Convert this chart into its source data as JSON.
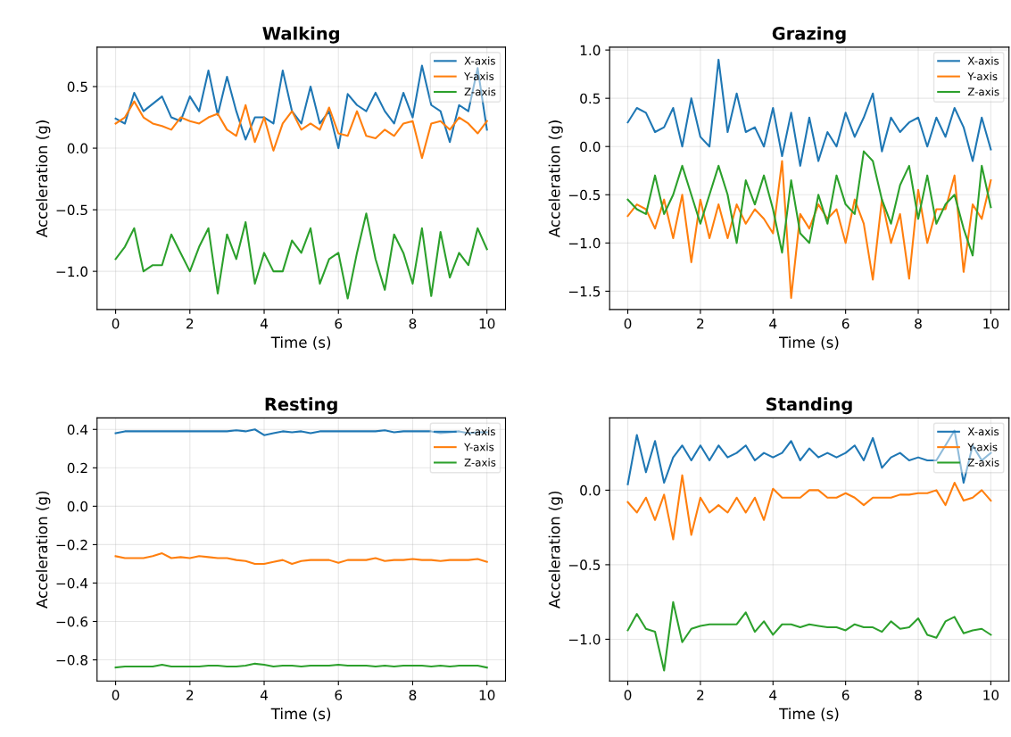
{
  "chart_data": [
    {
      "type": "line",
      "title": "Walking",
      "xlabel": "Time (s)",
      "ylabel": "Acceleration (g)",
      "xlim": [
        -0.5,
        10.5
      ],
      "xticks": [
        0,
        2,
        4,
        6,
        8,
        10
      ],
      "ylim": [
        -1.31,
        0.82
      ],
      "yticks": [
        {
          "value": -1.0,
          "label": "−1.0"
        },
        -0.5,
        {
          "value": 0.0,
          "label": "0.0"
        },
        0.5
      ],
      "grid": true,
      "legend": "top right",
      "x": [
        0,
        0.25,
        0.5,
        0.75,
        1,
        1.25,
        1.5,
        1.75,
        2,
        2.25,
        2.5,
        2.75,
        3,
        3.25,
        3.5,
        3.75,
        4,
        4.25,
        4.5,
        4.75,
        5,
        5.25,
        5.5,
        5.75,
        6,
        6.25,
        6.5,
        6.75,
        7,
        7.25,
        7.5,
        7.75,
        8,
        8.25,
        8.5,
        8.75,
        9,
        9.25,
        9.5,
        9.75,
        10
      ],
      "series": [
        {
          "name": "X-axis",
          "color": "#1f77b4",
          "values": [
            0.24,
            0.2,
            0.45,
            0.3,
            0.36,
            0.42,
            0.25,
            0.22,
            0.42,
            0.3,
            0.63,
            0.27,
            0.58,
            0.3,
            0.07,
            0.25,
            0.25,
            0.2,
            0.63,
            0.3,
            0.2,
            0.5,
            0.2,
            0.3,
            0.0,
            0.44,
            0.35,
            0.3,
            0.45,
            0.3,
            0.2,
            0.45,
            0.25,
            0.67,
            0.35,
            0.3,
            0.05,
            0.35,
            0.3,
            0.65,
            0.15
          ]
        },
        {
          "name": "Y-axis",
          "color": "#ff7f0e",
          "values": [
            0.2,
            0.25,
            0.38,
            0.25,
            0.2,
            0.18,
            0.15,
            0.25,
            0.22,
            0.2,
            0.25,
            0.28,
            0.15,
            0.1,
            0.35,
            0.05,
            0.25,
            -0.02,
            0.2,
            0.3,
            0.15,
            0.2,
            0.15,
            0.33,
            0.12,
            0.1,
            0.3,
            0.1,
            0.08,
            0.15,
            0.1,
            0.2,
            0.22,
            -0.08,
            0.2,
            0.22,
            0.15,
            0.25,
            0.2,
            0.12,
            0.22
          ]
        },
        {
          "name": "Z-axis",
          "color": "#2ca02c",
          "values": [
            -0.9,
            -0.8,
            -0.65,
            -1.0,
            -0.95,
            -0.95,
            -0.7,
            -0.85,
            -1.0,
            -0.8,
            -0.65,
            -1.18,
            -0.7,
            -0.9,
            -0.6,
            -1.1,
            -0.85,
            -1.0,
            -1.0,
            -0.75,
            -0.85,
            -0.65,
            -1.1,
            -0.9,
            -0.85,
            -1.22,
            -0.85,
            -0.53,
            -0.9,
            -1.15,
            -0.7,
            -0.85,
            -1.1,
            -0.65,
            -1.2,
            -0.68,
            -1.05,
            -0.85,
            -0.95,
            -0.65,
            -0.82
          ]
        }
      ]
    },
    {
      "type": "line",
      "title": "Grazing",
      "xlabel": "Time (s)",
      "ylabel": "Acceleration (g)",
      "xlim": [
        -0.5,
        10.5
      ],
      "xticks": [
        0,
        2,
        4,
        6,
        8,
        10
      ],
      "ylim": [
        -1.69,
        1.03
      ],
      "yticks": [
        -1.5,
        {
          "value": -1.0,
          "label": "−1.0"
        },
        -0.5,
        {
          "value": 0.0,
          "label": "0.0"
        },
        0.5,
        {
          "value": 1.0,
          "label": "1.0"
        }
      ],
      "grid": true,
      "legend": "top right",
      "x": [
        0,
        0.25,
        0.5,
        0.75,
        1,
        1.25,
        1.5,
        1.75,
        2,
        2.25,
        2.5,
        2.75,
        3,
        3.25,
        3.5,
        3.75,
        4,
        4.25,
        4.5,
        4.75,
        5,
        5.25,
        5.5,
        5.75,
        6,
        6.25,
        6.5,
        6.75,
        7,
        7.25,
        7.5,
        7.75,
        8,
        8.25,
        8.5,
        8.75,
        9,
        9.25,
        9.5,
        9.75,
        10
      ],
      "series": [
        {
          "name": "X-axis",
          "color": "#1f77b4",
          "values": [
            0.25,
            0.4,
            0.35,
            0.15,
            0.2,
            0.4,
            0.0,
            0.5,
            0.1,
            0.0,
            0.9,
            0.15,
            0.55,
            0.15,
            0.2,
            0.0,
            0.4,
            -0.1,
            0.35,
            -0.2,
            0.3,
            -0.15,
            0.15,
            0.0,
            0.35,
            0.1,
            0.3,
            0.55,
            -0.05,
            0.3,
            0.15,
            0.25,
            0.3,
            0.0,
            0.3,
            0.1,
            0.4,
            0.2,
            -0.15,
            0.3,
            -0.03
          ]
        },
        {
          "name": "Y-axis",
          "color": "#ff7f0e",
          "values": [
            -0.72,
            -0.6,
            -0.65,
            -0.85,
            -0.55,
            -0.95,
            -0.5,
            -1.2,
            -0.55,
            -0.95,
            -0.6,
            -0.95,
            -0.6,
            -0.8,
            -0.65,
            -0.75,
            -0.9,
            -0.15,
            -1.57,
            -0.7,
            -0.85,
            -0.6,
            -0.75,
            -0.65,
            -1.0,
            -0.55,
            -0.8,
            -1.38,
            -0.55,
            -1.0,
            -0.7,
            -1.37,
            -0.45,
            -1.0,
            -0.65,
            -0.65,
            -0.3,
            -1.3,
            -0.6,
            -0.75,
            -0.35
          ]
        },
        {
          "name": "Z-axis",
          "color": "#2ca02c",
          "values": [
            -0.55,
            -0.65,
            -0.7,
            -0.3,
            -0.7,
            -0.5,
            -0.2,
            -0.5,
            -0.8,
            -0.5,
            -0.2,
            -0.5,
            -1.0,
            -0.35,
            -0.6,
            -0.3,
            -0.65,
            -1.1,
            -0.35,
            -0.9,
            -1.0,
            -0.5,
            -0.8,
            -0.3,
            -0.6,
            -0.7,
            -0.05,
            -0.15,
            -0.55,
            -0.8,
            -0.4,
            -0.2,
            -0.75,
            -0.3,
            -0.8,
            -0.6,
            -0.5,
            -0.85,
            -1.13,
            -0.2,
            -0.63
          ]
        }
      ]
    },
    {
      "type": "line",
      "title": "Resting",
      "xlabel": "Time (s)",
      "ylabel": "Acceleration (g)",
      "xlim": [
        -0.5,
        10.5
      ],
      "xticks": [
        0,
        2,
        4,
        6,
        8,
        10
      ],
      "ylim": [
        -0.91,
        0.46
      ],
      "yticks": [
        -0.8,
        -0.6,
        -0.4,
        -0.2,
        {
          "value": 0.0,
          "label": "0.0"
        },
        0.2,
        0.4
      ],
      "grid": true,
      "legend": "top right",
      "x": [
        0,
        0.25,
        0.5,
        0.75,
        1,
        1.25,
        1.5,
        1.75,
        2,
        2.25,
        2.5,
        2.75,
        3,
        3.25,
        3.5,
        3.75,
        4,
        4.25,
        4.5,
        4.75,
        5,
        5.25,
        5.5,
        5.75,
        6,
        6.25,
        6.5,
        6.75,
        7,
        7.25,
        7.5,
        7.75,
        8,
        8.25,
        8.5,
        8.75,
        9,
        9.25,
        9.5,
        9.75,
        10
      ],
      "series": [
        {
          "name": "X-axis",
          "color": "#1f77b4",
          "values": [
            0.38,
            0.39,
            0.39,
            0.39,
            0.39,
            0.39,
            0.39,
            0.39,
            0.39,
            0.39,
            0.39,
            0.39,
            0.39,
            0.395,
            0.39,
            0.4,
            0.37,
            0.38,
            0.39,
            0.385,
            0.39,
            0.38,
            0.39,
            0.39,
            0.39,
            0.39,
            0.39,
            0.39,
            0.39,
            0.395,
            0.385,
            0.39,
            0.39,
            0.39,
            0.39,
            0.38,
            0.385,
            0.39,
            0.38,
            0.385,
            0.385
          ]
        },
        {
          "name": "Y-axis",
          "color": "#ff7f0e",
          "values": [
            -0.26,
            -0.27,
            -0.27,
            -0.27,
            -0.26,
            -0.245,
            -0.27,
            -0.265,
            -0.27,
            -0.26,
            -0.265,
            -0.27,
            -0.27,
            -0.28,
            -0.285,
            -0.3,
            -0.3,
            -0.29,
            -0.28,
            -0.3,
            -0.285,
            -0.28,
            -0.28,
            -0.28,
            -0.295,
            -0.28,
            -0.28,
            -0.28,
            -0.27,
            -0.285,
            -0.28,
            -0.28,
            -0.275,
            -0.28,
            -0.28,
            -0.285,
            -0.28,
            -0.28,
            -0.28,
            -0.275,
            -0.29
          ]
        },
        {
          "name": "Z-axis",
          "color": "#2ca02c",
          "values": [
            -0.84,
            -0.835,
            -0.835,
            -0.835,
            -0.835,
            -0.825,
            -0.835,
            -0.835,
            -0.835,
            -0.835,
            -0.83,
            -0.83,
            -0.835,
            -0.835,
            -0.83,
            -0.82,
            -0.825,
            -0.835,
            -0.83,
            -0.83,
            -0.835,
            -0.83,
            -0.83,
            -0.83,
            -0.825,
            -0.83,
            -0.83,
            -0.83,
            -0.835,
            -0.83,
            -0.835,
            -0.83,
            -0.83,
            -0.83,
            -0.835,
            -0.83,
            -0.835,
            -0.83,
            -0.83,
            -0.83,
            -0.84
          ]
        }
      ]
    },
    {
      "type": "line",
      "title": "Standing",
      "xlabel": "Time (s)",
      "ylabel": "Acceleration (g)",
      "xlim": [
        -0.5,
        10.5
      ],
      "xticks": [
        0,
        2,
        4,
        6,
        8,
        10
      ],
      "ylim": [
        -1.28,
        0.485
      ],
      "yticks": [
        {
          "value": -1.0,
          "label": "−1.0"
        },
        -0.5,
        {
          "value": 0.0,
          "label": "0.0"
        }
      ],
      "grid": true,
      "legend": "top right",
      "x": [
        0,
        0.25,
        0.5,
        0.75,
        1,
        1.25,
        1.5,
        1.75,
        2,
        2.25,
        2.5,
        2.75,
        3,
        3.25,
        3.5,
        3.75,
        4,
        4.25,
        4.5,
        4.75,
        5,
        5.25,
        5.5,
        5.75,
        6,
        6.25,
        6.5,
        6.75,
        7,
        7.25,
        7.5,
        7.75,
        8,
        8.25,
        8.5,
        8.75,
        9,
        9.25,
        9.5,
        9.75,
        10
      ],
      "series": [
        {
          "name": "X-axis",
          "color": "#1f77b4",
          "values": [
            0.04,
            0.37,
            0.12,
            0.33,
            0.05,
            0.22,
            0.3,
            0.2,
            0.3,
            0.2,
            0.3,
            0.22,
            0.25,
            0.3,
            0.2,
            0.25,
            0.22,
            0.25,
            0.33,
            0.2,
            0.28,
            0.22,
            0.25,
            0.22,
            0.25,
            0.3,
            0.2,
            0.35,
            0.15,
            0.22,
            0.25,
            0.2,
            0.22,
            0.2,
            0.2,
            0.3,
            0.4,
            0.05,
            0.3,
            0.2,
            0.25
          ]
        },
        {
          "name": "Y-axis",
          "color": "#ff7f0e",
          "values": [
            -0.08,
            -0.15,
            -0.05,
            -0.2,
            -0.03,
            -0.33,
            0.1,
            -0.3,
            -0.05,
            -0.15,
            -0.1,
            -0.15,
            -0.05,
            -0.15,
            -0.05,
            -0.2,
            0.01,
            -0.05,
            -0.05,
            -0.05,
            0.0,
            0.0,
            -0.05,
            -0.05,
            -0.02,
            -0.05,
            -0.1,
            -0.05,
            -0.05,
            -0.05,
            -0.03,
            -0.03,
            -0.02,
            -0.02,
            0.0,
            -0.1,
            0.05,
            -0.07,
            -0.05,
            0.0,
            -0.07
          ]
        },
        {
          "name": "Z-axis",
          "color": "#2ca02c",
          "values": [
            -0.94,
            -0.83,
            -0.93,
            -0.95,
            -1.21,
            -0.75,
            -1.02,
            -0.93,
            -0.91,
            -0.9,
            -0.9,
            -0.9,
            -0.9,
            -0.82,
            -0.95,
            -0.88,
            -0.97,
            -0.9,
            -0.9,
            -0.92,
            -0.9,
            -0.91,
            -0.92,
            -0.92,
            -0.94,
            -0.9,
            -0.92,
            -0.92,
            -0.95,
            -0.88,
            -0.93,
            -0.92,
            -0.86,
            -0.97,
            -0.99,
            -0.88,
            -0.85,
            -0.96,
            -0.94,
            -0.93,
            -0.97
          ]
        }
      ]
    }
  ]
}
